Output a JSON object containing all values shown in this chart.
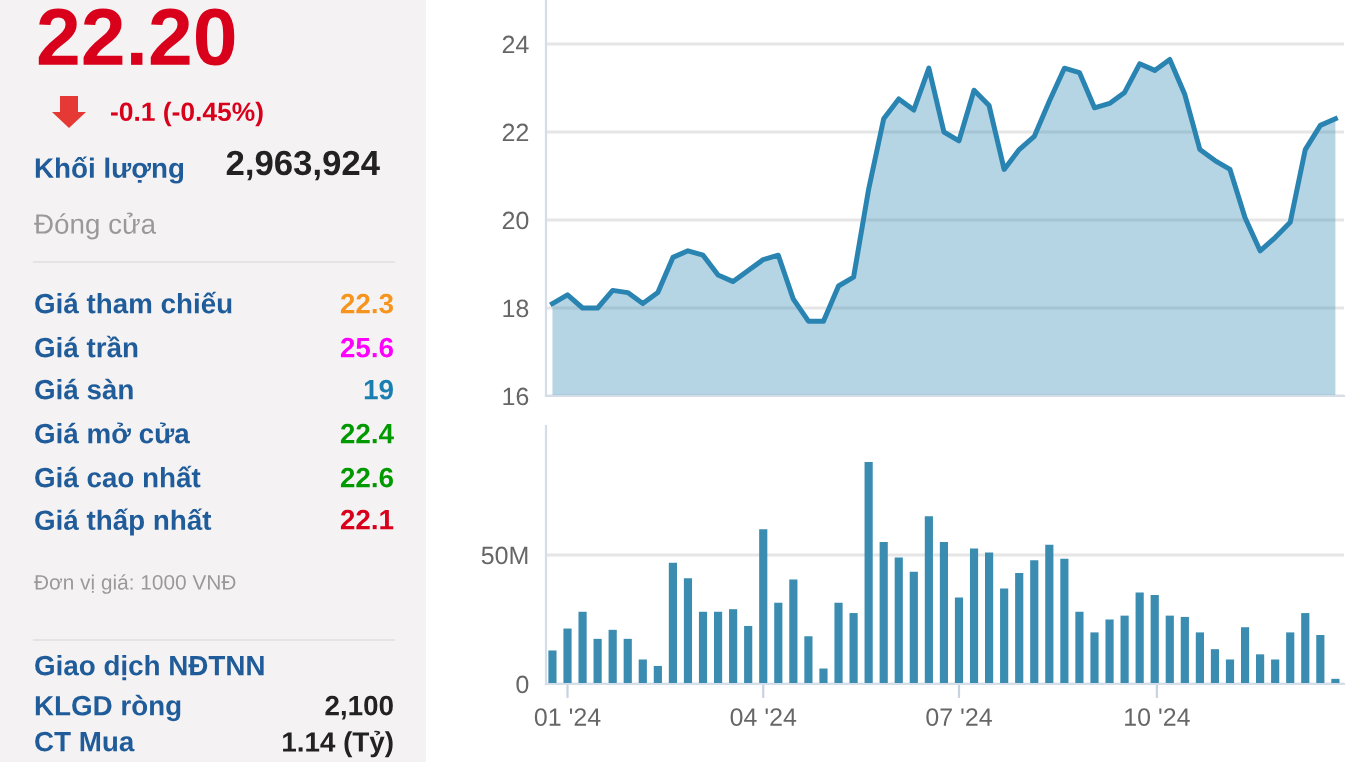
{
  "chart_data": [
    {
      "type": "other",
      "title": "22.20",
      "color": "#d9001b",
      "annotations": [
        "-0.1 (-0.45%)",
        "Khối lượng",
        "2,963,924",
        "Đóng cửa",
        "Giá tham chiếu",
        "22.3",
        "Giá trần",
        "25.6",
        "Giá sàn",
        "19",
        "Giá mở cửa",
        "22.4",
        "Giá cao nhất",
        "22.6",
        "Giá thấp nhất",
        "22.1",
        "Đơn vị giá: 1000 VNĐ",
        "Giao dịch NĐTNN",
        "KLGD ròng",
        "2,100",
        "CT Mua",
        "1.14 (Tỷ)"
      ],
      "colors": [
        "#d9001b",
        "#1f5c99",
        "#222222",
        "#999999",
        "#1f5c99",
        "#f7941d",
        "#1f5c99",
        "#ff00ff",
        "#1f5c99",
        "#1a7fb0",
        "#1f5c99",
        "#009a00",
        "#1f5c99",
        "#009a00",
        "#1f5c99",
        "#d9001b",
        "#999999",
        "#1f5c99",
        "#1f5c99",
        "#222222",
        "#1f5c99",
        "#222222"
      ]
    },
    {
      "type": "area",
      "color": "#2a84b2",
      "grid": "y",
      "tick_labels": "y",
      "x": [
        "2023-12-25",
        "2024-01-01",
        "2024-01-08",
        "2024-01-15",
        "2024-01-22",
        "2024-01-29",
        "2024-02-05",
        "2024-02-12",
        "2024-02-19",
        "2024-02-26",
        "2024-03-04",
        "2024-03-11",
        "2024-03-18",
        "2024-03-25",
        "2024-04-01",
        "2024-04-08",
        "2024-04-15",
        "2024-04-22",
        "2024-04-29",
        "2024-05-06",
        "2024-05-13",
        "2024-05-20",
        "2024-05-27",
        "2024-06-03",
        "2024-06-10",
        "2024-06-17",
        "2024-06-24",
        "2024-07-01",
        "2024-07-08",
        "2024-07-15",
        "2024-07-22",
        "2024-07-29",
        "2024-08-05",
        "2024-08-12",
        "2024-08-19",
        "2024-08-26",
        "2024-09-02",
        "2024-09-09",
        "2024-09-16",
        "2024-09-23",
        "2024-09-30",
        "2024-10-07",
        "2024-10-14",
        "2024-10-21",
        "2024-10-28",
        "2024-11-04",
        "2024-11-11",
        "2024-11-18",
        "2024-11-25",
        "2024-12-02",
        "2024-12-09",
        "2024-12-16",
        "2024-12-23"
      ],
      "values": [
        18.1,
        18.3,
        18.0,
        18.0,
        18.4,
        18.35,
        18.1,
        18.35,
        19.15,
        19.3,
        19.2,
        18.75,
        18.6,
        18.85,
        19.1,
        19.2,
        18.2,
        17.7,
        17.7,
        18.5,
        18.7,
        20.7,
        22.3,
        22.75,
        22.5,
        23.45,
        22.0,
        21.8,
        22.95,
        22.6,
        21.15,
        21.6,
        21.9,
        22.7,
        23.45,
        23.35,
        22.55,
        22.65,
        22.9,
        23.55,
        23.4,
        23.65,
        22.85,
        21.6,
        21.35,
        21.15,
        20.05,
        19.3,
        19.6,
        19.95,
        21.6,
        22.15,
        22.3
      ],
      "xlim": [
        "2023-12-22",
        "2024-12-27"
      ],
      "ylim": [
        16,
        25
      ],
      "yticks": [
        16,
        18,
        20,
        22,
        24
      ]
    },
    {
      "type": "bar",
      "color": "#3a8db0",
      "grid": "y",
      "x": [
        "2023-12-25",
        "2024-01-01",
        "2024-01-08",
        "2024-01-15",
        "2024-01-22",
        "2024-01-29",
        "2024-02-05",
        "2024-02-12",
        "2024-02-19",
        "2024-02-26",
        "2024-03-04",
        "2024-03-11",
        "2024-03-18",
        "2024-03-25",
        "2024-04-01",
        "2024-04-08",
        "2024-04-15",
        "2024-04-22",
        "2024-04-29",
        "2024-05-06",
        "2024-05-13",
        "2024-05-20",
        "2024-05-27",
        "2024-06-03",
        "2024-06-10",
        "2024-06-17",
        "2024-06-24",
        "2024-07-01",
        "2024-07-08",
        "2024-07-15",
        "2024-07-22",
        "2024-07-29",
        "2024-08-05",
        "2024-08-12",
        "2024-08-19",
        "2024-08-26",
        "2024-09-02",
        "2024-09-09",
        "2024-09-16",
        "2024-09-23",
        "2024-09-30",
        "2024-10-07",
        "2024-10-14",
        "2024-10-21",
        "2024-10-28",
        "2024-11-04",
        "2024-11-11",
        "2024-11-18",
        "2024-11-25",
        "2024-12-02",
        "2024-12-09",
        "2024-12-16",
        "2024-12-23"
      ],
      "values": [
        13,
        21.5,
        28,
        17.5,
        21,
        17.5,
        9.5,
        7,
        47,
        41,
        28,
        28,
        29,
        22.5,
        60,
        31.5,
        40.5,
        18.5,
        6,
        31.5,
        27.5,
        86,
        55,
        49,
        43.5,
        65,
        55,
        33.5,
        52.5,
        51,
        37,
        43,
        48,
        54,
        48.5,
        28,
        20,
        25,
        26.5,
        35.5,
        34.5,
        26.5,
        26,
        20,
        13.5,
        9.5,
        22,
        11.5,
        9.5,
        20,
        27.5,
        19,
        2
      ],
      "xlim": [
        "2023-12-22",
        "2024-12-27"
      ],
      "ylim": [
        0,
        100
      ],
      "yticks": [
        0,
        {
          "value": 50,
          "label": "50M"
        }
      ],
      "xticks": [
        {
          "value": "2024-01-01",
          "label": "01 '24"
        },
        {
          "value": "2024-04-01",
          "label": "04 '24"
        },
        {
          "value": "2024-07-01",
          "label": "07 '24"
        },
        {
          "value": "2024-10-01",
          "label": "10 '24"
        }
      ]
    }
  ]
}
